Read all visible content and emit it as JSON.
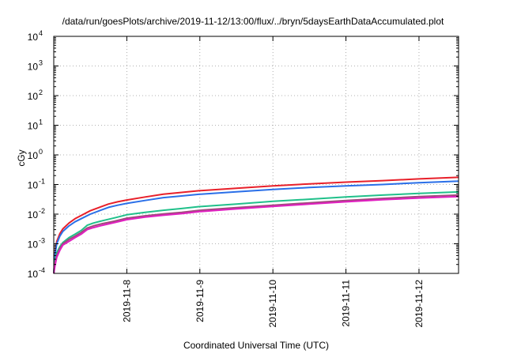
{
  "chart_data": {
    "type": "line",
    "title": "/data/run/goesPlots/archive/2019-11-12/13:00/flux/../bryn/5daysEarthDataAccumulated.plot",
    "xlabel": "Coordinated Universal Time (UTC)",
    "ylabel": "cGy",
    "x_ticks": [
      "2019-11-8",
      "2019-11-9",
      "2019-11-10",
      "2019-11-11",
      "2019-11-12"
    ],
    "xlim": [
      "2019-11-07 00:00",
      "2019-11-12 13:00"
    ],
    "ylim": [
      0.0001,
      10000
    ],
    "y_scale": "log",
    "y_tick_bases": [
      "10",
      "10",
      "10",
      "10",
      "10",
      "10",
      "10",
      "10",
      "10"
    ],
    "y_tick_exponents": [
      "-4",
      "-3",
      "-2",
      "-1",
      "0",
      "1",
      "2",
      "3",
      "4"
    ],
    "grid": true,
    "series": [
      {
        "color": "#e8202a",
        "points": [
          [
            "2019-11-07 00:00",
            0.0001
          ],
          [
            "2019-11-07 00:30",
            0.0006
          ],
          [
            "2019-11-07 01:00",
            0.0012
          ],
          [
            "2019-11-07 02:00",
            0.0022
          ],
          [
            "2019-11-07 03:00",
            0.0032
          ],
          [
            "2019-11-07 05:00",
            0.005
          ],
          [
            "2019-11-07 07:00",
            0.007
          ],
          [
            "2019-11-07 09:00",
            0.009
          ],
          [
            "2019-11-07 12:00",
            0.013
          ],
          [
            "2019-11-07 15:00",
            0.017
          ],
          [
            "2019-11-07 18:00",
            0.022
          ],
          [
            "2019-11-07 21:00",
            0.026
          ],
          [
            "2019-11-08 00:00",
            0.03
          ],
          [
            "2019-11-08 06:00",
            0.038
          ],
          [
            "2019-11-08 12:00",
            0.047
          ],
          [
            "2019-11-08 18:00",
            0.054
          ],
          [
            "2019-11-09 00:00",
            0.062
          ],
          [
            "2019-11-09 12:00",
            0.075
          ],
          [
            "2019-11-10 00:00",
            0.09
          ],
          [
            "2019-11-10 12:00",
            0.105
          ],
          [
            "2019-11-11 00:00",
            0.12
          ],
          [
            "2019-11-11 12:00",
            0.135
          ],
          [
            "2019-11-12 00:00",
            0.155
          ],
          [
            "2019-11-12 13:00",
            0.175
          ]
        ]
      },
      {
        "color": "#2a6fe8",
        "points": [
          [
            "2019-11-07 00:00",
            0.0001
          ],
          [
            "2019-11-07 00:30",
            0.0005
          ],
          [
            "2019-11-07 01:00",
            0.001
          ],
          [
            "2019-11-07 02:00",
            0.0018
          ],
          [
            "2019-11-07 03:00",
            0.0026
          ],
          [
            "2019-11-07 05:00",
            0.004
          ],
          [
            "2019-11-07 07:00",
            0.0055
          ],
          [
            "2019-11-07 09:00",
            0.007
          ],
          [
            "2019-11-07 12:00",
            0.01
          ],
          [
            "2019-11-07 15:00",
            0.013
          ],
          [
            "2019-11-07 18:00",
            0.017
          ],
          [
            "2019-11-07 21:00",
            0.02
          ],
          [
            "2019-11-08 00:00",
            0.023
          ],
          [
            "2019-11-08 06:00",
            0.029
          ],
          [
            "2019-11-08 12:00",
            0.036
          ],
          [
            "2019-11-08 18:00",
            0.041
          ],
          [
            "2019-11-09 00:00",
            0.047
          ],
          [
            "2019-11-09 12:00",
            0.057
          ],
          [
            "2019-11-10 00:00",
            0.068
          ],
          [
            "2019-11-10 12:00",
            0.079
          ],
          [
            "2019-11-11 00:00",
            0.09
          ],
          [
            "2019-11-11 12:00",
            0.1
          ],
          [
            "2019-11-12 00:00",
            0.115
          ],
          [
            "2019-11-12 13:00",
            0.13
          ]
        ]
      },
      {
        "color": "#20c08a",
        "points": [
          [
            "2019-11-07 00:00",
            0.0001
          ],
          [
            "2019-11-07 00:30",
            0.0003
          ],
          [
            "2019-11-07 01:00",
            0.0005
          ],
          [
            "2019-11-07 02:00",
            0.0008
          ],
          [
            "2019-11-07 03:00",
            0.0011
          ],
          [
            "2019-11-07 05:00",
            0.0016
          ],
          [
            "2019-11-07 07:00",
            0.0021
          ],
          [
            "2019-11-07 09:00",
            0.0028
          ],
          [
            "2019-11-07 11:00",
            0.0042
          ],
          [
            "2019-11-07 13:00",
            0.005
          ],
          [
            "2019-11-07 16:00",
            0.006
          ],
          [
            "2019-11-07 20:00",
            0.0075
          ],
          [
            "2019-11-08 00:00",
            0.0095
          ],
          [
            "2019-11-08 06:00",
            0.0115
          ],
          [
            "2019-11-08 12:00",
            0.0135
          ],
          [
            "2019-11-08 18:00",
            0.0155
          ],
          [
            "2019-11-09 00:00",
            0.018
          ],
          [
            "2019-11-09 12:00",
            0.022
          ],
          [
            "2019-11-10 00:00",
            0.027
          ],
          [
            "2019-11-10 12:00",
            0.032
          ],
          [
            "2019-11-11 00:00",
            0.038
          ],
          [
            "2019-11-11 12:00",
            0.044
          ],
          [
            "2019-11-12 00:00",
            0.05
          ],
          [
            "2019-11-12 13:00",
            0.056
          ]
        ]
      },
      {
        "color": "#a04a7a",
        "points": [
          [
            "2019-11-07 00:00",
            0.0001
          ],
          [
            "2019-11-07 00:30",
            0.00025
          ],
          [
            "2019-11-07 01:00",
            0.0004
          ],
          [
            "2019-11-07 02:00",
            0.0007
          ],
          [
            "2019-11-07 03:00",
            0.001
          ],
          [
            "2019-11-07 05:00",
            0.0014
          ],
          [
            "2019-11-07 07:00",
            0.0018
          ],
          [
            "2019-11-07 09:00",
            0.0024
          ],
          [
            "2019-11-07 11:00",
            0.0034
          ],
          [
            "2019-11-07 13:00",
            0.004
          ],
          [
            "2019-11-07 16:00",
            0.0048
          ],
          [
            "2019-11-07 20:00",
            0.0058
          ],
          [
            "2019-11-08 00:00",
            0.0073
          ],
          [
            "2019-11-08 06:00",
            0.0088
          ],
          [
            "2019-11-08 12:00",
            0.0102
          ],
          [
            "2019-11-08 18:00",
            0.0115
          ],
          [
            "2019-11-09 00:00",
            0.0135
          ],
          [
            "2019-11-09 12:00",
            0.0165
          ],
          [
            "2019-11-10 00:00",
            0.02
          ],
          [
            "2019-11-10 12:00",
            0.024
          ],
          [
            "2019-11-11 00:00",
            0.029
          ],
          [
            "2019-11-11 12:00",
            0.034
          ],
          [
            "2019-11-12 00:00",
            0.039
          ],
          [
            "2019-11-12 13:00",
            0.044
          ]
        ]
      },
      {
        "color": "#e020c0",
        "points": [
          [
            "2019-11-07 00:00",
            0.0001
          ],
          [
            "2019-11-07 00:30",
            0.0002
          ],
          [
            "2019-11-07 01:00",
            0.00035
          ],
          [
            "2019-11-07 02:00",
            0.0006
          ],
          [
            "2019-11-07 03:00",
            0.0009
          ],
          [
            "2019-11-07 05:00",
            0.0012
          ],
          [
            "2019-11-07 07:00",
            0.0016
          ],
          [
            "2019-11-07 09:00",
            0.0021
          ],
          [
            "2019-11-07 11:00",
            0.003
          ],
          [
            "2019-11-07 13:00",
            0.0035
          ],
          [
            "2019-11-07 16:00",
            0.0042
          ],
          [
            "2019-11-07 20:00",
            0.0052
          ],
          [
            "2019-11-08 00:00",
            0.0065
          ],
          [
            "2019-11-08 06:00",
            0.0079
          ],
          [
            "2019-11-08 12:00",
            0.0092
          ],
          [
            "2019-11-08 18:00",
            0.0104
          ],
          [
            "2019-11-09 00:00",
            0.0122
          ],
          [
            "2019-11-09 12:00",
            0.015
          ],
          [
            "2019-11-10 00:00",
            0.0182
          ],
          [
            "2019-11-10 12:00",
            0.0218
          ],
          [
            "2019-11-11 00:00",
            0.026
          ],
          [
            "2019-11-11 12:00",
            0.0305
          ],
          [
            "2019-11-12 00:00",
            0.035
          ],
          [
            "2019-11-12 13:00",
            0.039
          ]
        ]
      }
    ]
  }
}
